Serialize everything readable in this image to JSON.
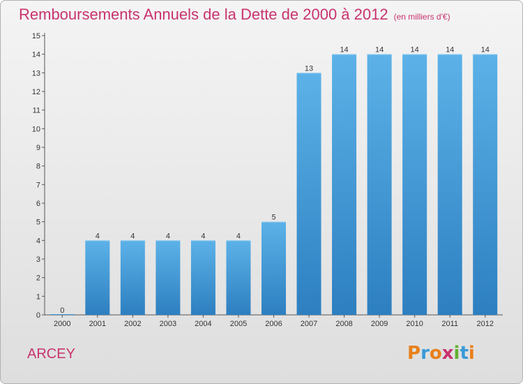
{
  "page": {
    "title": "Remboursements Annuels de la Dette de 2000 à 2012",
    "unit_note": "(en milliers d'€)",
    "commune": "ARCEY",
    "logo": {
      "letters": [
        "P",
        "r",
        "o",
        "x",
        "i",
        "t",
        "i"
      ],
      "colors": [
        "#e8801a",
        "#3a9bd8",
        "#e8801a",
        "#c8336e",
        "#62b030",
        "#3a9bd8",
        "#e8801a"
      ]
    }
  },
  "chart_data": {
    "type": "bar",
    "title": "Remboursements Annuels de la Dette de 2000 à 2012",
    "subtitle": "(en milliers d'€)",
    "categories": [
      "2000",
      "2001",
      "2002",
      "2003",
      "2004",
      "2005",
      "2006",
      "2007",
      "2008",
      "2009",
      "2010",
      "2011",
      "2012"
    ],
    "values": [
      0,
      4,
      4,
      4,
      4,
      4,
      5,
      13,
      14,
      14,
      14,
      14,
      14
    ],
    "data_labels": [
      "0",
      "4",
      "4",
      "4",
      "4",
      "4",
      "5",
      "13",
      "14",
      "14",
      "14",
      "14",
      "14"
    ],
    "ylim": [
      0,
      15
    ],
    "yticks": [
      0,
      1,
      2,
      3,
      4,
      5,
      6,
      7,
      8,
      9,
      10,
      11,
      12,
      13,
      14,
      15
    ],
    "xlabel": "",
    "ylabel": "",
    "grid": false,
    "legend": "none",
    "bar_color": "#3d9ad9",
    "bar_color_light": "#5cb2e8"
  }
}
